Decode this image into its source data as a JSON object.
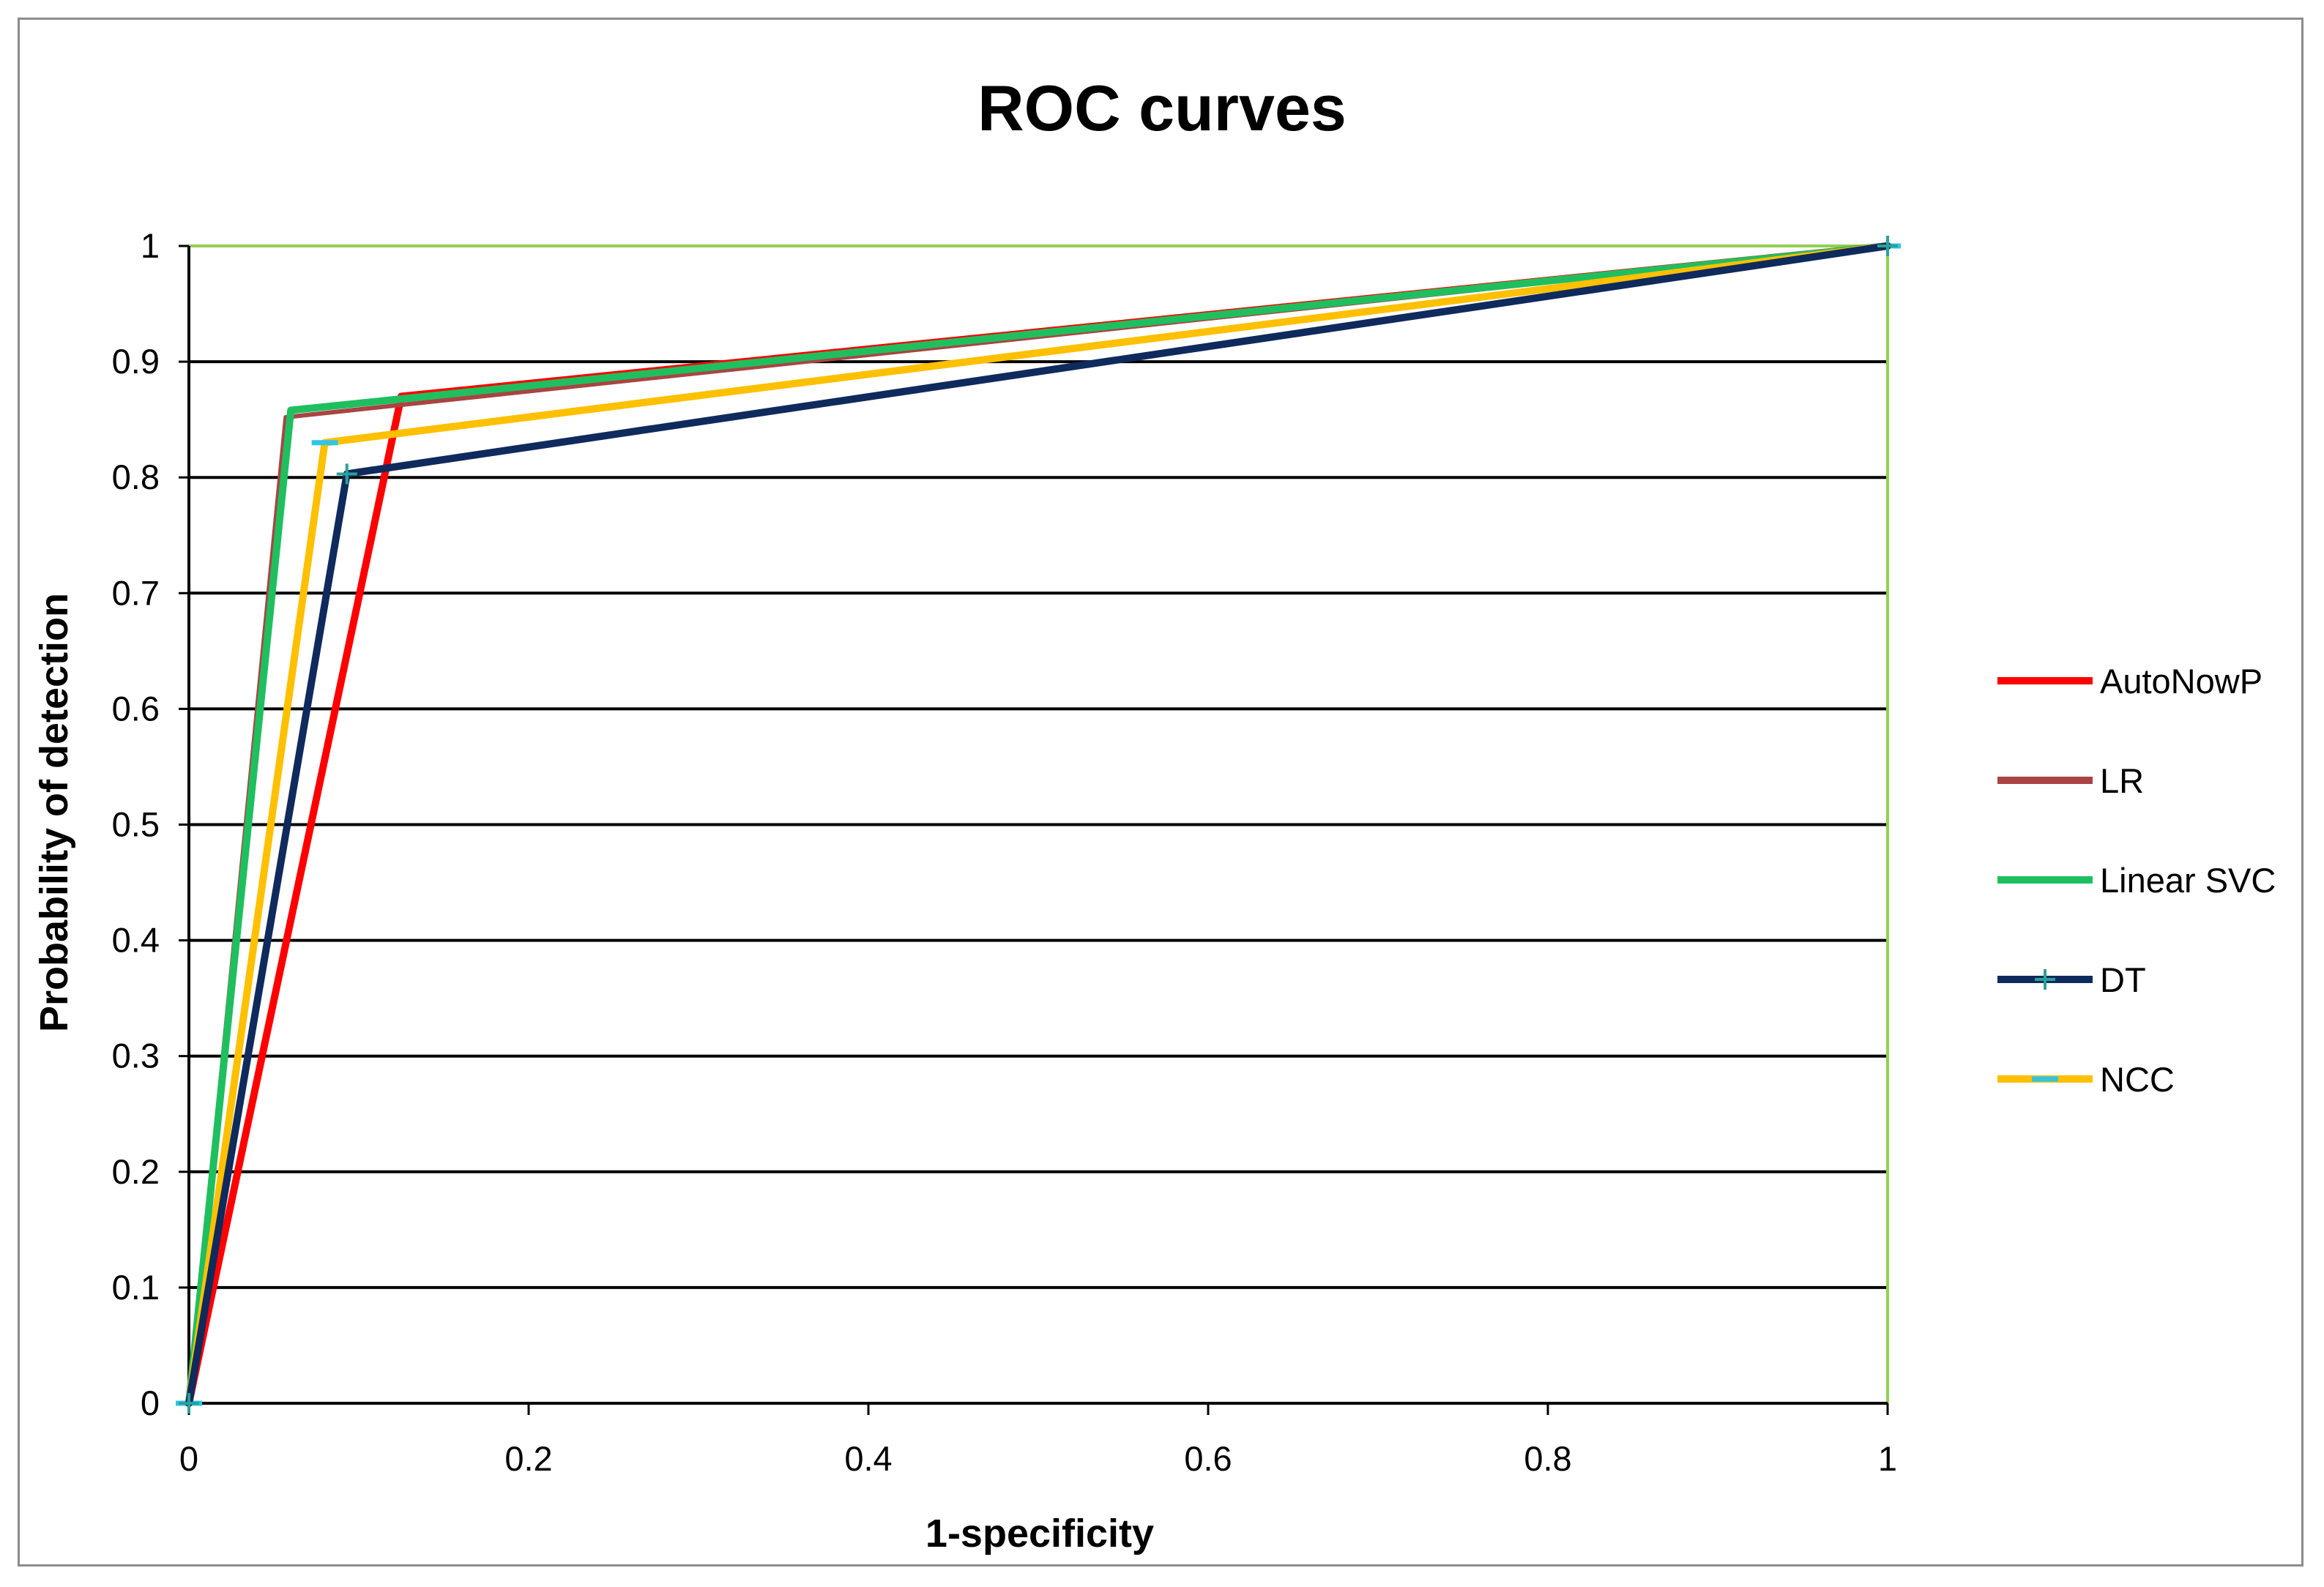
{
  "chart_data": {
    "type": "line",
    "title": "ROC curves",
    "xlabel": "1-specificity",
    "ylabel": "Probability of detection",
    "xlim": [
      0,
      1
    ],
    "ylim": [
      0,
      1
    ],
    "x_ticks": [
      "0",
      "0.2",
      "0.4",
      "0.6",
      "0.8",
      "1"
    ],
    "y_ticks": [
      "0",
      "0.1",
      "0.2",
      "0.3",
      "0.4",
      "0.5",
      "0.6",
      "0.7",
      "0.8",
      "0.9",
      "1"
    ],
    "grid": "horizontal",
    "legend_position": "right",
    "series": [
      {
        "name": "AutoNowP",
        "color": "#ff0000",
        "marker": "none",
        "x": [
          0,
          0.125,
          1
        ],
        "y": [
          0,
          0.87,
          1
        ]
      },
      {
        "name": "LR",
        "color": "#a94442",
        "marker": "none",
        "x": [
          0,
          0.057,
          1
        ],
        "y": [
          0,
          0.852,
          1
        ]
      },
      {
        "name": "Linear SVC",
        "color": "#1fbf5f",
        "marker": "none",
        "x": [
          0,
          0.06,
          1
        ],
        "y": [
          0,
          0.858,
          1
        ]
      },
      {
        "name": "DT",
        "color": "#0f2a5c",
        "marker": "plus",
        "marker_color": "#2aa198",
        "x": [
          0,
          0.093,
          1
        ],
        "y": [
          0,
          0.803,
          1
        ]
      },
      {
        "name": "NCC",
        "color": "#ffc000",
        "marker": "dash",
        "marker_color": "#2ec5e8",
        "x": [
          0,
          0.08,
          1
        ],
        "y": [
          0,
          0.83,
          1
        ]
      }
    ]
  },
  "colors": {
    "gridline": "#000000",
    "plot_border": "#92d050",
    "axis": "#000000"
  }
}
